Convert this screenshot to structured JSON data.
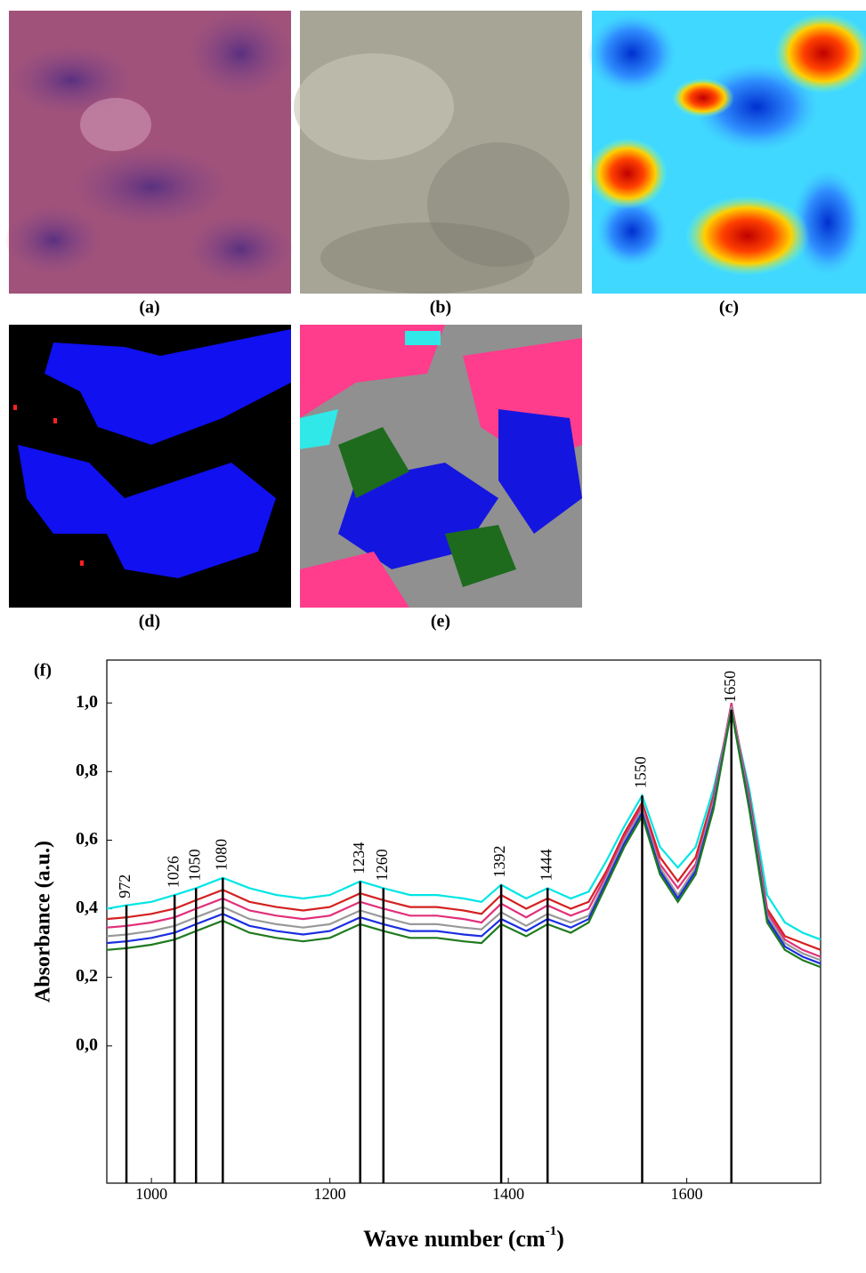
{
  "panels": [
    "(a)",
    "(b)",
    "(c)",
    "(d)",
    "(e)"
  ],
  "chart_data": {
    "type": "line",
    "label": "(f)",
    "xlabel": "Wave number (cm",
    "xlabel_sup": "-1",
    "xlabel_end": ")",
    "ylabel": "Absorbance (a.u.)",
    "xlim": [
      950,
      1750
    ],
    "ylim": [
      -0.4,
      1.125
    ],
    "xticks": [
      1000,
      1200,
      1400,
      1600
    ],
    "yticks": [
      {
        "value": 0,
        "label": "0,0"
      },
      {
        "value": 0.2,
        "label": "0,2"
      },
      {
        "value": 0.4,
        "label": "0,4"
      },
      {
        "value": 0.6,
        "label": "0,6"
      },
      {
        "value": 0.8,
        "label": "0,8"
      },
      {
        "value": 1.0,
        "label": "1,0"
      }
    ],
    "peaks": [
      972,
      1026,
      1050,
      1080,
      1234,
      1260,
      1392,
      1444,
      1550,
      1650
    ],
    "x": [
      950,
      972,
      1000,
      1026,
      1050,
      1080,
      1110,
      1140,
      1170,
      1200,
      1234,
      1260,
      1290,
      1320,
      1350,
      1370,
      1392,
      1420,
      1444,
      1470,
      1490,
      1510,
      1530,
      1550,
      1570,
      1590,
      1610,
      1630,
      1650,
      1670,
      1690,
      1710,
      1730,
      1750
    ],
    "series": [
      {
        "color": "#00e5e5",
        "values": [
          0.4,
          0.41,
          0.42,
          0.44,
          0.46,
          0.49,
          0.46,
          0.44,
          0.43,
          0.44,
          0.48,
          0.46,
          0.44,
          0.44,
          0.43,
          0.42,
          0.47,
          0.43,
          0.46,
          0.43,
          0.45,
          0.54,
          0.64,
          0.73,
          0.58,
          0.52,
          0.58,
          0.75,
          0.98,
          0.75,
          0.44,
          0.36,
          0.33,
          0.31
        ]
      },
      {
        "color": "#d42020",
        "values": [
          0.37,
          0.375,
          0.385,
          0.4,
          0.425,
          0.455,
          0.42,
          0.405,
          0.395,
          0.405,
          0.445,
          0.425,
          0.405,
          0.405,
          0.395,
          0.385,
          0.44,
          0.4,
          0.43,
          0.4,
          0.42,
          0.51,
          0.62,
          0.71,
          0.55,
          0.48,
          0.55,
          0.73,
          0.99,
          0.73,
          0.4,
          0.32,
          0.3,
          0.28
        ]
      },
      {
        "color": "#e0307a",
        "values": [
          0.345,
          0.35,
          0.36,
          0.375,
          0.4,
          0.43,
          0.395,
          0.38,
          0.37,
          0.38,
          0.42,
          0.4,
          0.38,
          0.38,
          0.37,
          0.36,
          0.415,
          0.375,
          0.41,
          0.38,
          0.4,
          0.5,
          0.61,
          0.7,
          0.53,
          0.46,
          0.53,
          0.72,
          1.0,
          0.72,
          0.39,
          0.31,
          0.28,
          0.26
        ]
      },
      {
        "color": "#999999",
        "values": [
          0.32,
          0.325,
          0.335,
          0.35,
          0.375,
          0.405,
          0.37,
          0.355,
          0.345,
          0.355,
          0.395,
          0.375,
          0.355,
          0.355,
          0.345,
          0.34,
          0.39,
          0.35,
          0.385,
          0.36,
          0.38,
          0.49,
          0.6,
          0.69,
          0.52,
          0.44,
          0.52,
          0.71,
          0.99,
          0.71,
          0.38,
          0.3,
          0.27,
          0.25
        ]
      },
      {
        "color": "#1a2ee0",
        "values": [
          0.3,
          0.305,
          0.315,
          0.33,
          0.355,
          0.385,
          0.35,
          0.335,
          0.325,
          0.335,
          0.375,
          0.355,
          0.335,
          0.335,
          0.325,
          0.32,
          0.37,
          0.335,
          0.37,
          0.345,
          0.37,
          0.48,
          0.59,
          0.68,
          0.51,
          0.43,
          0.51,
          0.7,
          0.98,
          0.7,
          0.37,
          0.29,
          0.26,
          0.24
        ]
      },
      {
        "color": "#1f7a1f",
        "values": [
          0.28,
          0.285,
          0.295,
          0.31,
          0.335,
          0.365,
          0.33,
          0.315,
          0.305,
          0.315,
          0.355,
          0.335,
          0.315,
          0.315,
          0.305,
          0.3,
          0.355,
          0.32,
          0.355,
          0.33,
          0.36,
          0.47,
          0.58,
          0.67,
          0.5,
          0.42,
          0.5,
          0.69,
          0.98,
          0.69,
          0.36,
          0.28,
          0.25,
          0.23
        ]
      }
    ]
  }
}
